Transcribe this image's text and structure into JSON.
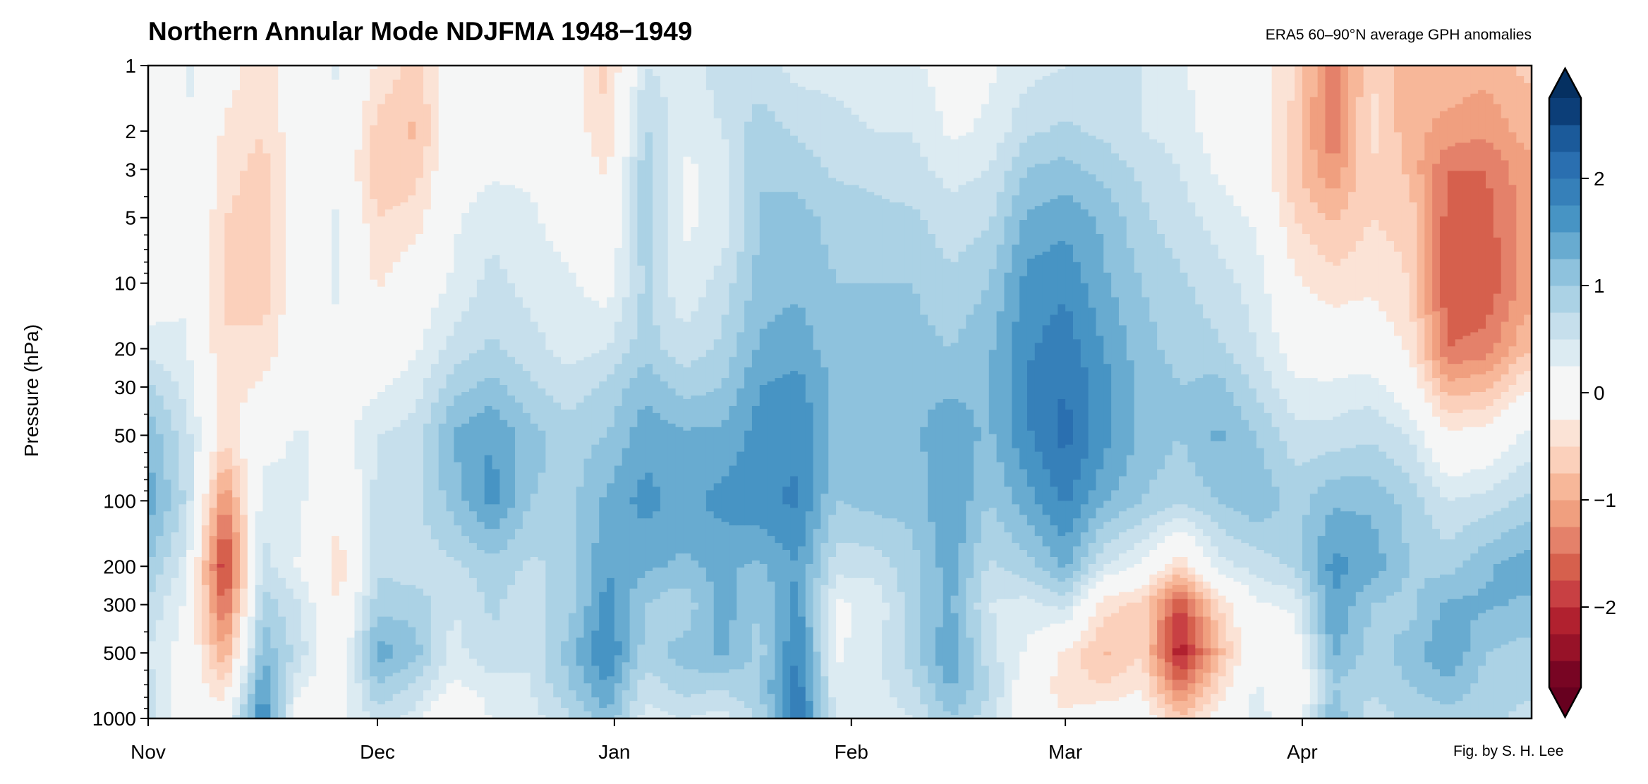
{
  "title": "Northern Annular Mode NDJFMA 1948−1949",
  "subtitle": "ERA5 60–90°N average GPH anomalies",
  "credit": "Fig. by S. H. Lee",
  "chart_data": {
    "type": "heatmap",
    "style": "filled contour",
    "title": "Northern Annular Mode NDJFMA 1948−1949",
    "subtitle": "ERA5 60–90°N average GPH anomalies",
    "xlabel": "",
    "ylabel": "Pressure (hPa)",
    "xlim": [
      "1948-11-01",
      "1949-04-30"
    ],
    "ylim": [
      1000,
      1
    ],
    "yscale": "log",
    "grid": false,
    "x_ticks": [
      {
        "label": "Nov",
        "date": "1948-11-01"
      },
      {
        "label": "Dec",
        "date": "1948-12-01"
      },
      {
        "label": "Jan",
        "date": "1949-01-01"
      },
      {
        "label": "Feb",
        "date": "1949-02-01"
      },
      {
        "label": "Mar",
        "date": "1949-03-01"
      },
      {
        "label": "Apr",
        "date": "1949-04-01"
      }
    ],
    "y_ticks": [
      1,
      2,
      3,
      5,
      10,
      20,
      30,
      50,
      100,
      200,
      300,
      500,
      1000
    ],
    "pressure_levels": [
      1,
      2,
      3,
      5,
      10,
      20,
      30,
      50,
      100,
      200,
      300,
      500,
      700,
      1000
    ],
    "dates": [
      "1948-11-01",
      "1948-11-06",
      "1948-11-11",
      "1948-11-16",
      "1948-11-21",
      "1948-11-26",
      "1948-12-01",
      "1948-12-06",
      "1948-12-11",
      "1948-12-16",
      "1948-12-21",
      "1948-12-26",
      "1948-12-31",
      "1949-01-05",
      "1949-01-10",
      "1949-01-15",
      "1949-01-20",
      "1949-01-25",
      "1949-01-30",
      "1949-02-04",
      "1949-02-09",
      "1949-02-14",
      "1949-02-19",
      "1949-02-24",
      "1949-03-01",
      "1949-03-06",
      "1949-03-11",
      "1949-03-16",
      "1949-03-21",
      "1949-03-26",
      "1949-03-31",
      "1949-04-05",
      "1949-04-10",
      "1949-04-15",
      "1949-04-20",
      "1949-04-25",
      "1949-04-30"
    ],
    "values": [
      [
        -0.3,
        -0.3,
        -0.3,
        -0.3,
        0.0,
        0.4,
        0.8,
        1.2,
        1.4,
        1.0,
        0.7,
        0.5,
        0.6,
        0.8
      ],
      [
        0.3,
        0.3,
        0.3,
        0.3,
        0.2,
        0.3,
        0.4,
        0.6,
        0.7,
        0.4,
        0.2,
        0.1,
        0.0,
        -0.2
      ],
      [
        -0.1,
        -0.3,
        -0.4,
        -0.5,
        -0.5,
        -0.5,
        -0.4,
        -0.4,
        -1.3,
        -2.0,
        -1.6,
        -1.0,
        -0.5,
        0.0
      ],
      [
        -0.4,
        -0.5,
        -0.6,
        -0.6,
        -0.7,
        -0.4,
        -0.2,
        0.1,
        0.4,
        0.6,
        0.9,
        1.2,
        1.5,
        1.8
      ],
      [
        0.0,
        0.0,
        0.0,
        0.1,
        0.1,
        0.0,
        0.0,
        0.3,
        0.3,
        0.2,
        0.5,
        0.6,
        0.3,
        -0.2
      ],
      [
        0.3,
        0.2,
        0.1,
        0.3,
        0.3,
        0.2,
        0.1,
        0.1,
        -0.2,
        -0.4,
        -0.3,
        -0.1,
        0.0,
        0.1
      ],
      [
        -0.3,
        -0.6,
        -0.7,
        -0.5,
        -0.3,
        0.0,
        0.2,
        0.5,
        0.6,
        0.7,
        0.9,
        1.4,
        1.0,
        0.6
      ],
      [
        -0.6,
        -0.8,
        -0.6,
        -0.4,
        0.0,
        0.2,
        0.4,
        0.6,
        0.7,
        0.6,
        0.9,
        1.1,
        0.7,
        0.4
      ],
      [
        0.0,
        0.0,
        0.1,
        0.2,
        0.3,
        0.6,
        0.9,
        1.3,
        1.1,
        0.7,
        0.5,
        0.4,
        0.2,
        -0.3
      ],
      [
        0.1,
        0.1,
        0.2,
        0.4,
        0.6,
        0.8,
        1.1,
        1.5,
        1.6,
        0.9,
        0.8,
        0.7,
        0.4,
        0.3
      ],
      [
        0.0,
        0.1,
        0.2,
        0.3,
        0.4,
        0.6,
        0.8,
        1.1,
        1.0,
        0.7,
        0.6,
        0.5,
        0.5,
        0.4
      ],
      [
        0.0,
        0.0,
        0.0,
        0.1,
        0.3,
        0.4,
        0.6,
        0.9,
        0.9,
        0.8,
        0.9,
        1.1,
        1.0,
        0.7
      ],
      [
        -0.6,
        -0.5,
        -0.3,
        -0.1,
        0.1,
        0.5,
        0.8,
        1.0,
        1.3,
        1.5,
        1.6,
        1.8,
        1.5,
        1.2
      ],
      [
        0.5,
        0.8,
        0.9,
        0.9,
        0.8,
        0.9,
        1.2,
        1.4,
        1.6,
        1.3,
        1.0,
        0.9,
        0.6,
        0.4
      ],
      [
        0.4,
        0.3,
        0.2,
        0.2,
        0.3,
        0.6,
        0.9,
        1.3,
        1.4,
        1.2,
        0.8,
        1.1,
        0.9,
        0.5
      ],
      [
        0.6,
        0.5,
        0.3,
        0.3,
        0.6,
        0.8,
        1.0,
        1.3,
        1.6,
        1.3,
        1.4,
        1.3,
        0.8,
        0.4
      ],
      [
        0.6,
        0.9,
        1.0,
        1.0,
        1.1,
        1.3,
        1.5,
        1.6,
        1.7,
        1.2,
        1.0,
        0.9,
        1.0,
        0.8
      ],
      [
        0.4,
        0.7,
        0.9,
        1.1,
        1.2,
        1.4,
        1.6,
        1.7,
        1.8,
        1.5,
        1.6,
        1.8,
        1.9,
        2.1
      ],
      [
        0.4,
        0.6,
        0.7,
        0.9,
        1.0,
        1.1,
        1.2,
        1.2,
        1.0,
        0.6,
        0.2,
        0.2,
        0.3,
        0.4
      ],
      [
        0.3,
        0.5,
        0.7,
        0.8,
        1.0,
        1.1,
        1.1,
        1.2,
        1.1,
        0.6,
        0.3,
        0.4,
        0.4,
        0.3
      ],
      [
        0.3,
        0.5,
        0.6,
        0.8,
        1.0,
        1.1,
        1.2,
        1.2,
        1.1,
        0.9,
        0.9,
        0.9,
        0.7,
        0.5
      ],
      [
        0.1,
        0.2,
        0.4,
        0.6,
        0.8,
        1.0,
        1.2,
        1.4,
        1.5,
        1.4,
        1.3,
        1.5,
        1.3,
        1.0
      ],
      [
        0.2,
        0.3,
        0.5,
        0.7,
        1.0,
        1.2,
        1.2,
        1.2,
        1.0,
        0.7,
        0.5,
        0.6,
        0.8,
        0.6
      ],
      [
        0.4,
        0.7,
        1.0,
        1.3,
        1.6,
        1.7,
        1.8,
        1.7,
        1.4,
        0.9,
        0.4,
        0.2,
        0.0,
        -0.1
      ],
      [
        0.5,
        0.8,
        1.1,
        1.4,
        1.7,
        1.9,
        2.0,
        2.1,
        1.8,
        1.3,
        0.6,
        -0.3,
        -0.4,
        -0.2
      ],
      [
        0.6,
        0.7,
        0.9,
        1.2,
        1.3,
        1.5,
        1.6,
        1.6,
        1.3,
        0.5,
        -0.4,
        -0.8,
        -0.5,
        0.0
      ],
      [
        0.5,
        0.5,
        0.7,
        0.8,
        1.0,
        1.1,
        1.2,
        1.2,
        1.0,
        0.2,
        -0.6,
        -0.5,
        -0.3,
        0.0
      ],
      [
        0.3,
        0.4,
        0.5,
        0.6,
        0.8,
        0.9,
        1.0,
        1.0,
        0.8,
        -0.5,
        -1.8,
        -2.2,
        -1.5,
        -0.7
      ],
      [
        0.0,
        0.1,
        0.2,
        0.4,
        0.6,
        0.8,
        1.1,
        1.3,
        1.0,
        0.4,
        -0.5,
        -0.9,
        -0.5,
        -0.1
      ],
      [
        0.0,
        0.0,
        0.0,
        0.2,
        0.4,
        0.5,
        0.7,
        1.0,
        1.2,
        0.6,
        0.2,
        0.2,
        0.3,
        0.4
      ],
      [
        -0.5,
        -0.6,
        -0.7,
        -0.5,
        -0.2,
        0.1,
        0.3,
        0.6,
        0.9,
        0.8,
        0.3,
        0.0,
        -0.3,
        0.0
      ],
      [
        -1.4,
        -1.5,
        -1.2,
        -0.8,
        -0.4,
        0.0,
        0.3,
        0.6,
        1.2,
        1.6,
        1.5,
        1.3,
        1.0,
        1.2
      ],
      [
        -0.5,
        -0.4,
        -0.5,
        -0.5,
        -0.3,
        0.0,
        0.4,
        0.7,
        1.2,
        1.4,
        1.0,
        0.9,
        0.8,
        0.6
      ],
      [
        -0.9,
        -0.9,
        -0.8,
        -0.6,
        -0.5,
        -0.3,
        0.0,
        0.5,
        0.9,
        1.0,
        0.9,
        1.1,
        1.0,
        0.8
      ],
      [
        -0.8,
        -1.1,
        -1.5,
        -1.6,
        -1.7,
        -1.5,
        -0.9,
        -0.2,
        0.5,
        0.9,
        1.3,
        1.5,
        1.2,
        0.9
      ],
      [
        -0.9,
        -1.2,
        -1.5,
        -1.6,
        -1.7,
        -1.4,
        -0.8,
        -0.1,
        0.6,
        1.2,
        1.3,
        1.0,
        0.9,
        0.8
      ],
      [
        -0.7,
        -0.9,
        -1.1,
        -1.2,
        -1.2,
        -0.8,
        -0.3,
        0.3,
        0.8,
        1.4,
        1.2,
        0.9,
        0.8,
        0.7
      ]
    ],
    "colorbar": {
      "levels_min": -2.75,
      "levels_max": 2.75,
      "level_step": 0.25,
      "extend": "both",
      "ticks": [
        {
          "value": 2,
          "label": "2"
        },
        {
          "value": 1,
          "label": "1"
        },
        {
          "value": 0,
          "label": "0"
        },
        {
          "value": -1,
          "label": "−1"
        },
        {
          "value": -2,
          "label": "−2"
        }
      ],
      "colormap": "RdBu_r",
      "colors": [
        "#780523",
        "#971228",
        "#b1212f",
        "#c84043",
        "#d6604d",
        "#e4816a",
        "#f09f7f",
        "#f7b799",
        "#fbd0bb",
        "#fbe3d6",
        "#f5f6f6",
        "#f5f6f6",
        "#dcebf2",
        "#c6dfec",
        "#abd2e5",
        "#8ec2dd",
        "#68abd0",
        "#4794c4",
        "#3680b9",
        "#2a6fb0",
        "#1b5a9a",
        "#0c3e78"
      ],
      "under_color": "#67001f",
      "over_color": "#053061"
    }
  }
}
